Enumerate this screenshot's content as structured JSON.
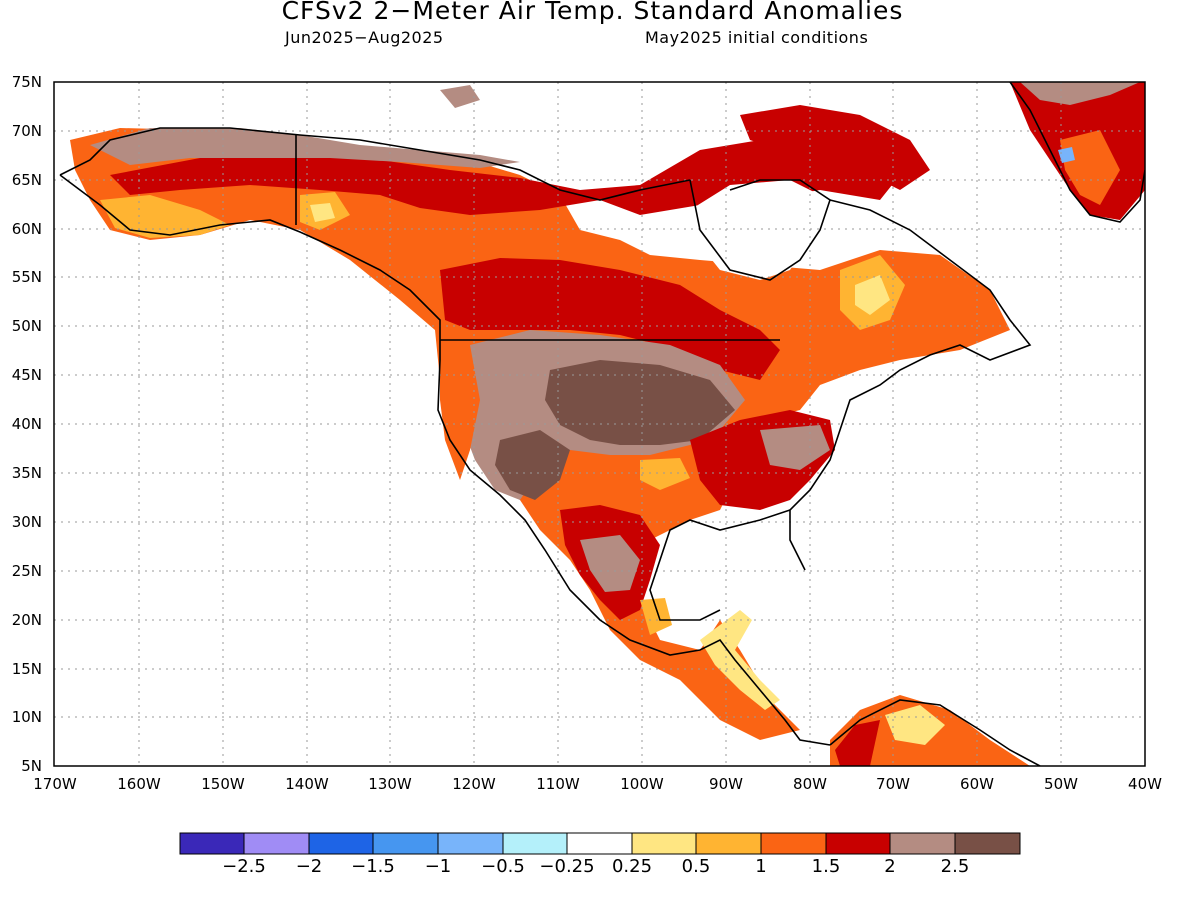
{
  "title": "CFSv2 2−Meter Air Temp. Standard Anomalies",
  "subtitle_left": "Jun2025−Aug2025",
  "subtitle_right": "May2025 initial conditions",
  "lat_labels": [
    "75N",
    "70N",
    "65N",
    "60N",
    "55N",
    "50N",
    "45N",
    "40N",
    "35N",
    "30N",
    "25N",
    "20N",
    "15N",
    "10N",
    "5N"
  ],
  "lon_labels": [
    "170W",
    "160W",
    "150W",
    "140W",
    "130W",
    "120W",
    "110W",
    "100W",
    "90W",
    "80W",
    "70W",
    "60W",
    "50W",
    "40W"
  ],
  "colorbar": {
    "colors": [
      "#3a28b8",
      "#a08cf5",
      "#1e64e6",
      "#4696f0",
      "#78b4fa",
      "#b4f0fa",
      "#ffffff",
      "#ffe682",
      "#ffb432",
      "#fa6414",
      "#c80000",
      "#b48c82",
      "#785046"
    ],
    "labels": [
      "−2.5",
      "−2",
      "−1.5",
      "−1",
      "−0.5",
      "−0.25",
      "0.25",
      "0.5",
      "1",
      "1.5",
      "2",
      "2.5"
    ]
  },
  "colors": {
    "ocean": "#ffffff",
    "coast": "#000000",
    "grid": "#9a9a9a"
  }
}
